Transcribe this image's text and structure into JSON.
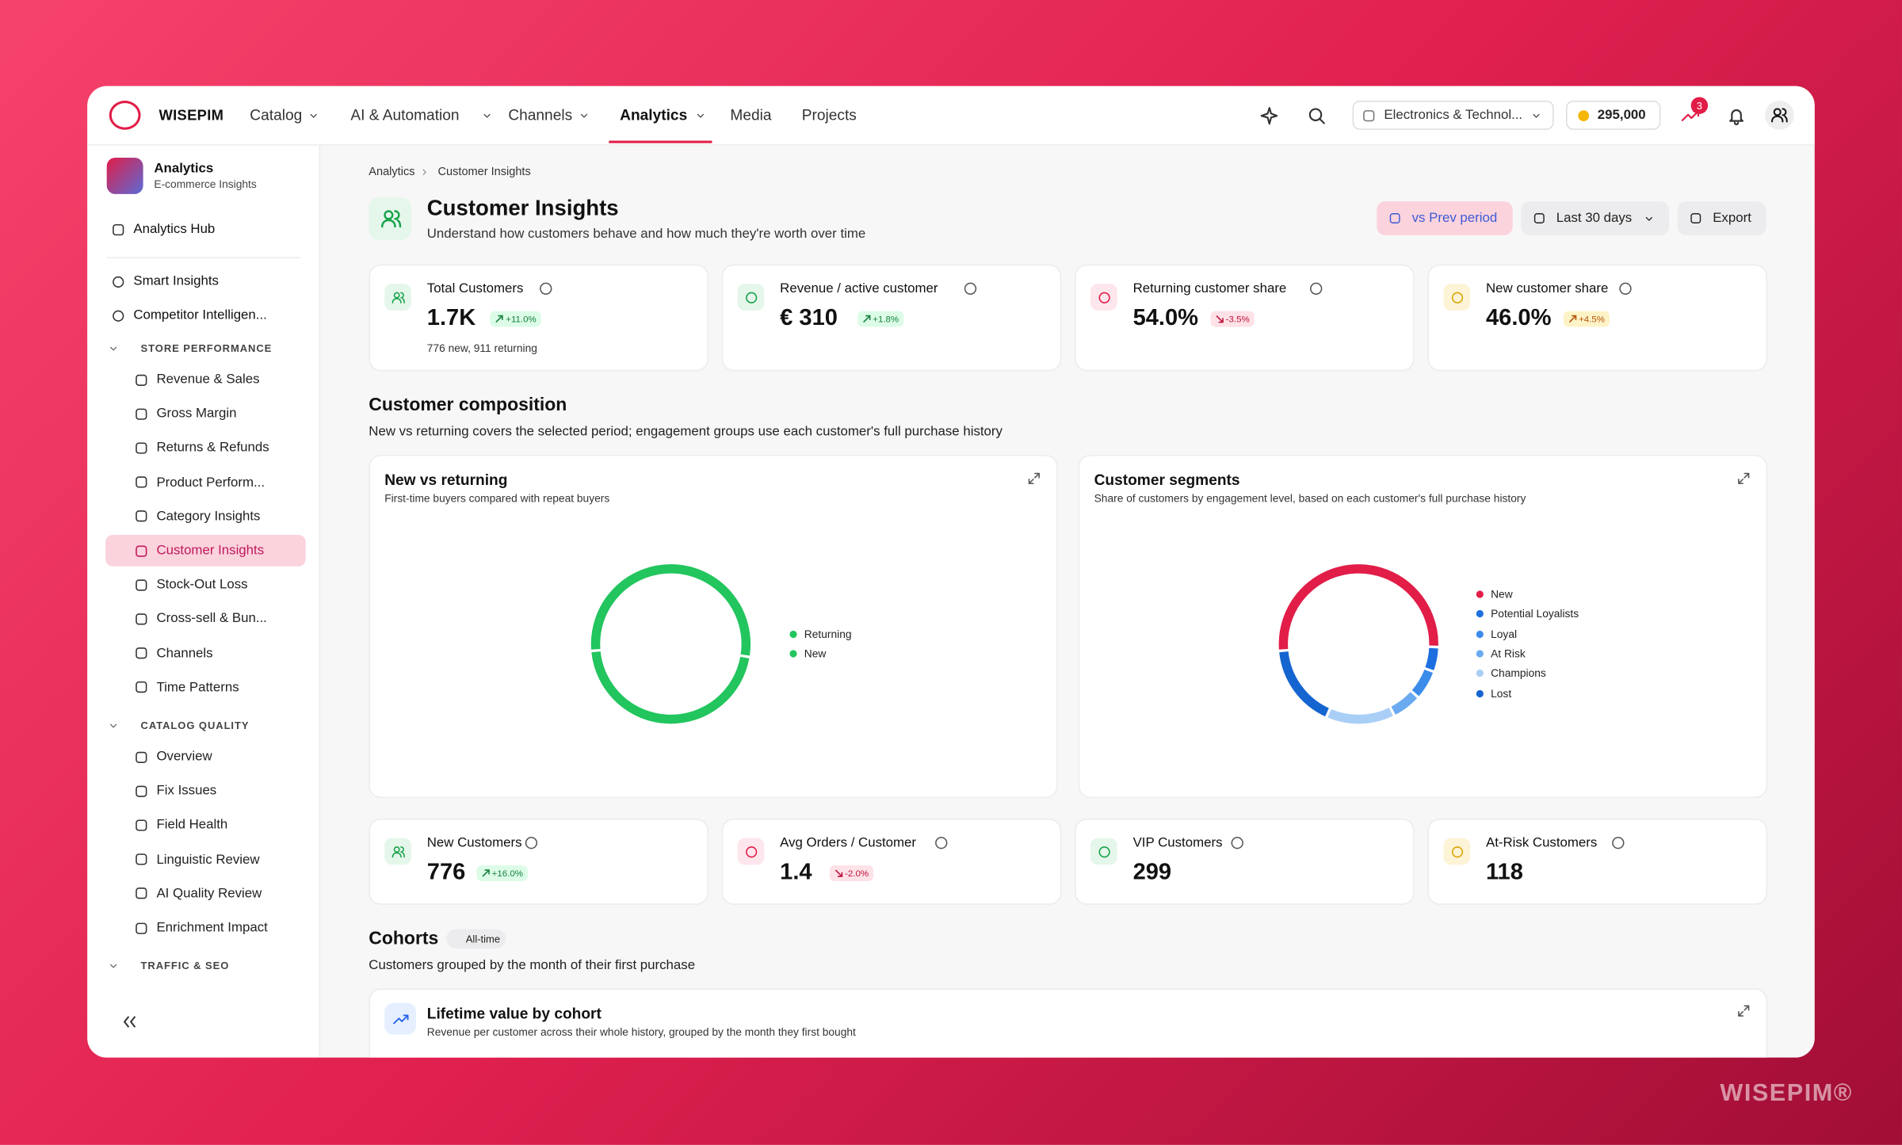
{
  "brand": "WISEPIM",
  "nav": {
    "items": [
      "Catalog",
      "AI & Automation",
      "Channels",
      "Analytics",
      "Media",
      "Projects"
    ],
    "dropdown_count": 4,
    "active": 3
  },
  "store_selector": "Electronics & Technol...",
  "credits": "295,000",
  "notification_count": 3,
  "sidebar": {
    "title": "Analytics",
    "subtitle": "E-commerce Insights",
    "hub": "Analytics Hub",
    "items": [
      "Smart Insights",
      "Competitor Intelligen..."
    ],
    "groups": [
      {
        "name": "STORE PERFORMANCE",
        "items": [
          "Revenue & Sales",
          "Gross Margin",
          "Returns & Refunds",
          "Product Perform...",
          "Category Insights",
          "Customer Insights",
          "Stock-Out Loss",
          "Cross-sell & Bun...",
          "Channels",
          "Time Patterns"
        ],
        "active": 5
      },
      {
        "name": "CATALOG QUALITY",
        "items": [
          "Overview",
          "Fix Issues",
          "Field Health",
          "Linguistic Review",
          "AI Quality Review",
          "Enrichment Impact"
        ]
      },
      {
        "name": "TRAFFIC & SEO",
        "items": []
      }
    ]
  },
  "breadcrumb": [
    "Analytics",
    "Customer Insights"
  ],
  "header": {
    "title": "Customer Insights",
    "subtitle": "Understand how customers behave and how much they're worth over time"
  },
  "buttons": [
    "vs Prev period",
    "Last 30 days",
    "Export"
  ],
  "kpis": [
    {
      "label": "Total Customers",
      "value": "1.7K",
      "change": "+11.0%",
      "trend": "up",
      "tone": "green",
      "note": "776 new, 911 returning"
    },
    {
      "label": "Revenue / active customer",
      "value": "€ 310",
      "change": "+1.8%",
      "trend": "up",
      "tone": "green"
    },
    {
      "label": "Returning customer share",
      "value": "54.0%",
      "change": "-3.5%",
      "trend": "down",
      "tone": "pink"
    },
    {
      "label": "New customer share",
      "value": "46.0%",
      "change": "+4.5%",
      "trend": "up",
      "tone": "amber"
    }
  ],
  "composition": {
    "title": "Customer composition",
    "description": "New vs returning covers the selected period; engagement groups use each customer's full purchase history"
  },
  "chart_data": [
    {
      "type": "donut",
      "title": "New vs returning",
      "subtitle": "First-time buyers compared with repeat buyers",
      "categories": [
        "Returning",
        "New"
      ],
      "values": [
        54,
        46
      ],
      "colors": [
        "#22c55e",
        "#22c55e"
      ]
    },
    {
      "type": "donut",
      "title": "Customer segments",
      "subtitle": "Share of customers by engagement level, based on each customer's full purchase history",
      "categories": [
        "New",
        "Potential Loyalists",
        "Loyal",
        "At Risk",
        "Champions",
        "Lost"
      ],
      "values": [
        52,
        5,
        6,
        6,
        14,
        17
      ],
      "colors": [
        "#e11d48",
        "#1d6fe0",
        "#3b8bea",
        "#6aaaf0",
        "#a9cff6",
        "#1565d0"
      ]
    }
  ],
  "kpis2": [
    {
      "label": "New Customers",
      "value": "776",
      "change": "+16.0%",
      "trend": "up",
      "tone": "green"
    },
    {
      "label": "Avg Orders / Customer",
      "value": "1.4",
      "change": "-2.0%",
      "trend": "down",
      "tone": "pink"
    },
    {
      "label": "VIP Customers",
      "value": "299",
      "tone": "green"
    },
    {
      "label": "At-Risk Customers",
      "value": "118",
      "tone": "amber"
    }
  ],
  "cohorts": {
    "title": "Cohorts",
    "badge": "All-time",
    "description": "Customers grouped by the month of their first purchase",
    "card_title": "Lifetime value by cohort",
    "card_subtitle": "Revenue per customer across their whole history, grouped by the month they first bought"
  },
  "watermark": "WISEPIM®"
}
